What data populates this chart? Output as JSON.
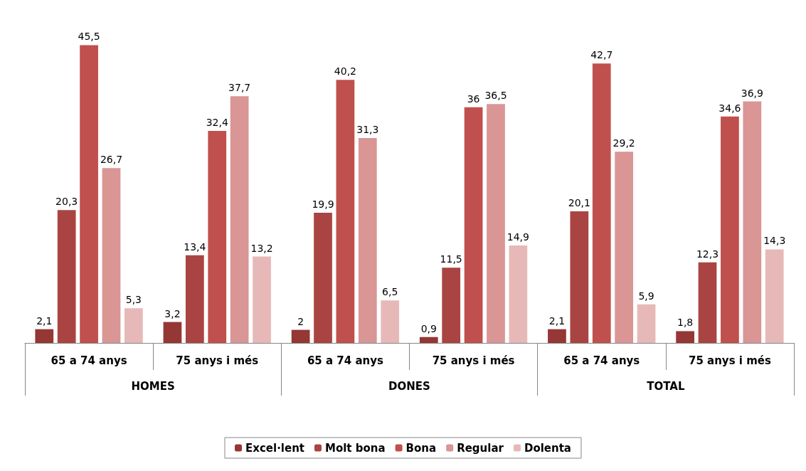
{
  "chart_data": {
    "type": "bar",
    "categories": [
      "65 a 74 anys",
      "75 anys i més",
      "65 a 74 anys",
      "75 anys i més",
      "65 a 74 anys",
      "75 anys i més"
    ],
    "series": [
      {
        "name": "Excel·lent",
        "color": "#953735",
        "values": [
          2.1,
          3.2,
          2,
          0.9,
          2.1,
          1.8
        ],
        "value_labels": [
          "2,1",
          "3,2",
          "2",
          "0,9",
          "2,1",
          "1,8"
        ]
      },
      {
        "name": "Molt bona",
        "color": "#a94442",
        "values": [
          20.3,
          13.4,
          19.9,
          11.5,
          20.1,
          12.3
        ],
        "value_labels": [
          "20,3",
          "13,4",
          "19,9",
          "11,5",
          "20,1",
          "12,3"
        ]
      },
      {
        "name": "Bona",
        "color": "#c0504d",
        "values": [
          45.5,
          32.4,
          40.2,
          36,
          42.7,
          34.6
        ],
        "value_labels": [
          "45,5",
          "32,4",
          "40,2",
          "36",
          "42,7",
          "34,6"
        ]
      },
      {
        "name": "Regular",
        "color": "#d99694",
        "values": [
          26.7,
          37.7,
          31.3,
          36.5,
          29.2,
          36.9
        ],
        "value_labels": [
          "26,7",
          "37,7",
          "31,3",
          "36,5",
          "29,2",
          "36,9"
        ]
      },
      {
        "name": "Dolenta",
        "color": "#e6b9b8",
        "values": [
          5.3,
          13.2,
          6.5,
          14.9,
          5.9,
          14.3
        ],
        "value_labels": [
          "5,3",
          "13,2",
          "6,5",
          "14,9",
          "5,9",
          "14,3"
        ]
      }
    ],
    "annotations": [
      "HOMES",
      "DONES",
      "TOTAL"
    ],
    "legend": "bottom"
  }
}
